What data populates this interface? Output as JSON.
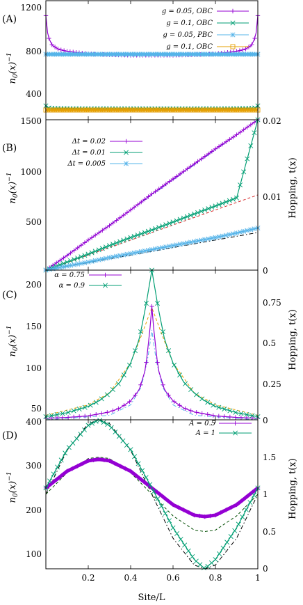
{
  "chart_data": [
    {
      "type": "line",
      "panel_label": "(A)",
      "ylabel": "n_0(x)^{-1}",
      "y_ticks": [
        "1200",
        "800",
        "400",
        "1500"
      ],
      "xlim": [
        0,
        1
      ],
      "legend_placement": "top-right",
      "series": [
        {
          "name": "g = 0.05, OBC",
          "color": "#9400d3",
          "marker": "plus",
          "x": [
            0,
            0.01,
            0.03,
            0.06,
            0.1,
            0.2,
            0.3,
            0.4,
            0.5,
            0.6,
            0.7,
            0.8,
            0.9,
            0.94,
            0.97,
            0.99,
            1
          ],
          "y": [
            1200,
            990,
            900,
            860,
            840,
            815,
            805,
            800,
            800,
            800,
            805,
            815,
            840,
            860,
            900,
            990,
            1200
          ]
        },
        {
          "name": "g = 0.1, OBC",
          "color": "#009e73",
          "marker": "cross",
          "x": [
            0,
            0.01,
            0.03,
            0.1,
            0.2,
            0.3,
            0.4,
            0.5,
            0.6,
            0.7,
            0.8,
            0.9,
            0.97,
            0.99,
            1
          ],
          "y": [
            290,
            270,
            265,
            262,
            260,
            260,
            260,
            260,
            260,
            260,
            260,
            262,
            265,
            270,
            290
          ]
        },
        {
          "name": "g = 0.05, PBC",
          "color": "#56b4e9",
          "marker": "star",
          "x": [
            0,
            0.25,
            0.5,
            0.75,
            1
          ],
          "y": [
            810,
            810,
            810,
            810,
            810
          ]
        },
        {
          "name": "g = 0.1, OBC",
          "color": "#e69f00",
          "marker": "square",
          "x": [
            0,
            0.25,
            0.5,
            0.75,
            1
          ],
          "y": [
            248,
            248,
            248,
            248,
            248
          ]
        }
      ]
    },
    {
      "type": "line",
      "panel_label": "(B)",
      "ylabel": "n_0(x)^{-1}",
      "y2label": "Hopping, t(x)",
      "y_ticks": [
        "1000",
        "500"
      ],
      "y2_ticks": [
        "0.02",
        "0.01",
        "0"
      ],
      "ylim": [
        0,
        1500
      ],
      "y2lim": [
        0,
        0.02
      ],
      "xlim": [
        0,
        1
      ],
      "legend_placement": "top-left",
      "series": [
        {
          "name": "Δt = 0.02",
          "color": "#9400d3",
          "marker": "plus",
          "x": [
            0,
            0.1,
            0.2,
            0.3,
            0.4,
            0.5,
            0.6,
            0.7,
            0.8,
            0.9,
            1
          ],
          "y": [
            0,
            145,
            300,
            445,
            600,
            760,
            910,
            1060,
            1210,
            1350,
            1500
          ]
        },
        {
          "name": "Δt = 0.01",
          "color": "#009e73",
          "marker": "cross",
          "x": [
            0,
            0.1,
            0.2,
            0.3,
            0.4,
            0.5,
            0.6,
            0.7,
            0.8,
            0.9,
            1
          ],
          "y": [
            0,
            80,
            160,
            245,
            325,
            400,
            480,
            560,
            640,
            720,
            1500
          ]
        },
        {
          "name": "Δt = 0.005",
          "color": "#56b4e9",
          "marker": "star",
          "x": [
            0,
            0.1,
            0.2,
            0.3,
            0.4,
            0.5,
            0.6,
            0.7,
            0.8,
            0.9,
            1
          ],
          "y": [
            0,
            40,
            80,
            125,
            165,
            205,
            245,
            285,
            325,
            370,
            420
          ]
        }
      ],
      "hopping_lines": [
        {
          "color": "#0000cd",
          "style": "dotted",
          "x": [
            0,
            1
          ],
          "y": [
            0,
            0.02
          ]
        },
        {
          "color": "#d62728",
          "style": "dashed",
          "x": [
            0,
            1
          ],
          "y": [
            0,
            0.01
          ]
        },
        {
          "color": "#000000",
          "style": "dashdot",
          "x": [
            0,
            1
          ],
          "y": [
            0,
            0.005
          ]
        }
      ]
    },
    {
      "type": "line",
      "panel_label": "(C)",
      "ylabel": "n_0(x)^{-1}",
      "y2label": "Hopping, t(x)",
      "y_ticks": [
        "200",
        "150",
        "100",
        "50"
      ],
      "y2_ticks": [
        "0",
        "0.75",
        "0.5",
        "0.25"
      ],
      "ylim": [
        28,
        218
      ],
      "y2lim": [
        0,
        1
      ],
      "xlim": [
        0,
        1
      ],
      "legend_placement": "top-left",
      "series": [
        {
          "name": "α = 0.75",
          "color": "#9400d3",
          "marker": "plus",
          "x": [
            0,
            0.1,
            0.2,
            0.3,
            0.35,
            0.4,
            0.44,
            0.47,
            0.49,
            0.5,
            0.51,
            0.53,
            0.56,
            0.6,
            0.65,
            0.7,
            0.8,
            0.9,
            1
          ],
          "y": [
            30,
            31,
            33,
            38,
            43,
            52,
            66,
            92,
            140,
            172,
            140,
            92,
            66,
            52,
            43,
            38,
            33,
            31,
            30
          ]
        },
        {
          "name": "α = 0.9",
          "color": "#009e73",
          "marker": "cross",
          "x": [
            0,
            0.1,
            0.2,
            0.25,
            0.3,
            0.35,
            0.4,
            0.44,
            0.47,
            0.5,
            0.53,
            0.56,
            0.6,
            0.65,
            0.7,
            0.75,
            0.8,
            0.9,
            1
          ],
          "y": [
            32,
            37,
            45,
            52,
            62,
            76,
            100,
            130,
            170,
            218,
            170,
            130,
            100,
            76,
            62,
            52,
            45,
            37,
            32
          ]
        }
      ],
      "hopping_lines": [
        {
          "color": "#e69f00",
          "style": "dashed",
          "x": [
            0,
            0.2,
            0.3,
            0.4,
            0.45,
            0.5,
            0.55,
            0.6,
            0.7,
            0.8,
            1
          ],
          "y": [
            0.03,
            0.1,
            0.18,
            0.38,
            0.56,
            0.75,
            0.56,
            0.38,
            0.18,
            0.1,
            0.03
          ]
        },
        {
          "color": "#56b4e9",
          "style": "dashdot",
          "x": [
            0,
            0.3,
            0.4,
            0.45,
            0.48,
            0.5,
            0.52,
            0.55,
            0.6,
            0.7,
            1
          ],
          "y": [
            0,
            0.03,
            0.1,
            0.22,
            0.4,
            0.6,
            0.4,
            0.22,
            0.1,
            0.03,
            0
          ]
        }
      ]
    },
    {
      "type": "line",
      "panel_label": "(D)",
      "ylabel": "n_0(x)^{-1}",
      "y2label": "Hopping, t(x)",
      "xlabel": "Site/L",
      "x_ticks": [
        "0.2",
        "0.4",
        "0.6",
        "0.8",
        "1"
      ],
      "y_ticks": [
        "400",
        "300",
        "200",
        "100"
      ],
      "y2_ticks": [
        "1.5",
        "1",
        "0.5",
        "0"
      ],
      "ylim": [
        0,
        400
      ],
      "y2lim": [
        0,
        2
      ],
      "xlim": [
        0,
        1
      ],
      "legend_placement": "top-right",
      "series": [
        {
          "name": "A = 0.5",
          "color": "#9400d3",
          "marker": "plus",
          "x": [
            0,
            0.1,
            0.2,
            0.25,
            0.3,
            0.4,
            0.5,
            0.6,
            0.7,
            0.75,
            0.8,
            0.9,
            1
          ],
          "y": [
            217,
            262,
            290,
            294,
            290,
            262,
            217,
            172,
            144,
            140,
            144,
            172,
            217
          ]
        },
        {
          "name": "A = 1",
          "color": "#009e73",
          "marker": "cross",
          "x": [
            0,
            0.1,
            0.2,
            0.25,
            0.3,
            0.4,
            0.5,
            0.6,
            0.7,
            0.75,
            0.8,
            0.9,
            1
          ],
          "y": [
            217,
            320,
            385,
            400,
            385,
            320,
            217,
            110,
            25,
            0,
            25,
            110,
            217
          ]
        }
      ],
      "hopping_lines": [
        {
          "color": "#000000",
          "style": "dashdot",
          "x": [
            0,
            0.1,
            0.2,
            0.25,
            0.3,
            0.4,
            0.5,
            0.6,
            0.7,
            0.75,
            0.8,
            0.9,
            1
          ],
          "y": [
            1,
            1.59,
            1.95,
            2.0,
            1.95,
            1.59,
            1,
            0.41,
            0.05,
            0,
            0.05,
            0.41,
            1
          ]
        },
        {
          "color": "#004d00",
          "style": "dashed",
          "x": [
            0,
            0.1,
            0.2,
            0.25,
            0.3,
            0.4,
            0.5,
            0.6,
            0.7,
            0.75,
            0.8,
            0.9,
            1
          ],
          "y": [
            1,
            1.29,
            1.48,
            1.5,
            1.48,
            1.29,
            1,
            0.71,
            0.52,
            0.5,
            0.52,
            0.71,
            1
          ]
        }
      ]
    }
  ]
}
